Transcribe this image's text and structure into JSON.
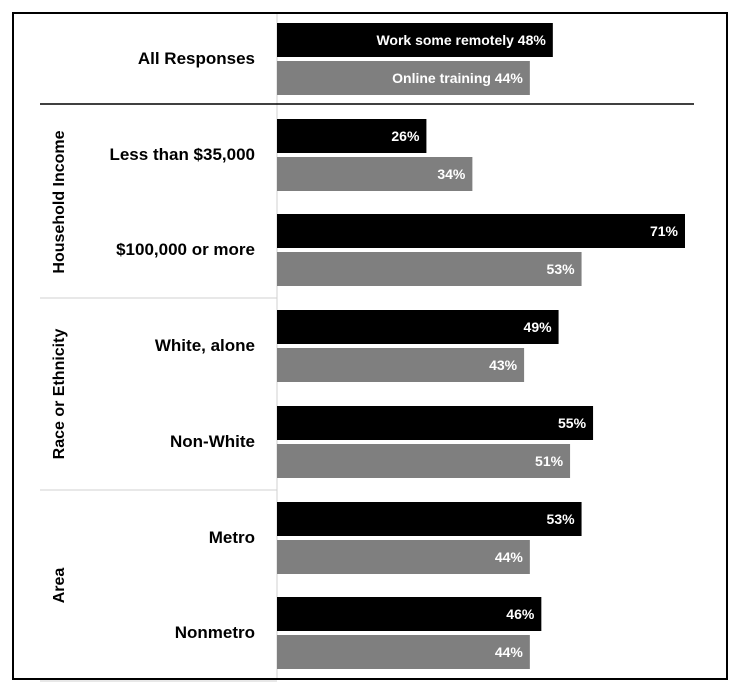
{
  "chart_data": {
    "type": "bar",
    "orientation": "horizontal",
    "title": "",
    "xlim": [
      0,
      75
    ],
    "grid": false,
    "value_suffix": "%",
    "colors": {
      "Work some remotely": "#000000",
      "Online training": "#7f7f7f"
    },
    "groups": [
      {
        "name": "",
        "categories": [
          "All Responses"
        ]
      },
      {
        "name": "Household Income",
        "categories": [
          "Less than $35,000",
          "$100,000 or more"
        ]
      },
      {
        "name": "Race or Ethnicity",
        "categories": [
          "White, alone",
          "Non-White"
        ]
      },
      {
        "name": "Area",
        "categories": [
          "Metro",
          "Nonmetro"
        ]
      }
    ],
    "categories": [
      "All Responses",
      "Less than $35,000",
      "$100,000 or more",
      "White, alone",
      "Non-White",
      "Metro",
      "Nonmetro"
    ],
    "series": [
      {
        "name": "Work some remotely",
        "values": [
          48,
          26,
          71,
          49,
          55,
          53,
          46
        ]
      },
      {
        "name": "Online training",
        "values": [
          44,
          34,
          53,
          43,
          51,
          44,
          44
        ]
      }
    ]
  }
}
